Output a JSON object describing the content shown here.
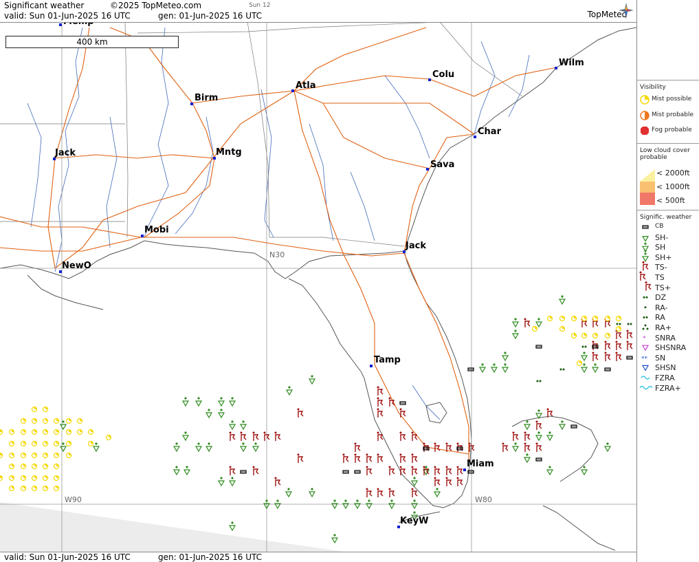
{
  "header": {
    "product": "Significant weather",
    "copyright": "©2025 TopMeteo.com",
    "day_code": "Sun 12",
    "valid": "valid:  Sun  01-Jun-2025  16 UTC",
    "gen": "gen: 01-Jun-2025 16 UTC",
    "brand": "TopMeteo"
  },
  "footer": {
    "valid": "valid:  Sun  01-Jun-2025  16 UTC",
    "gen": "gen: 01-Jun-2025 16 UTC"
  },
  "map": {
    "scale_label": "400 km",
    "grid_labels": [
      "N30",
      "W90",
      "W80"
    ],
    "cities": [
      "Memp",
      "Wilm",
      "Colu",
      "Atla",
      "Birm",
      "Char",
      "Jack",
      "Mntg",
      "Sava",
      "Mobi",
      "Jack",
      "NewO",
      "Tamp",
      "Miam",
      "KeyW"
    ]
  },
  "legend": {
    "visibility_title": "Visibility",
    "visibility": [
      "Mist possible",
      "Mist probable",
      "Fog probable"
    ],
    "lowcloud_title": "Low cloud cover probable",
    "lowcloud": [
      "< 2000ft",
      "< 1000ft",
      "<   500ft"
    ],
    "sigwx_title": "Signific. weather",
    "sigwx": [
      "CB",
      "SH-",
      "SH",
      "SH+",
      "TS-",
      "TS",
      "TS+",
      "DZ",
      "RA-",
      "RA",
      "RA+",
      "SNRA",
      "SHSNRA",
      "SN",
      "SHSN",
      "FZRA",
      "FZRA+"
    ],
    "colors": {
      "mist": "#f5d800",
      "orange": "#f07820",
      "fog": "#e03030",
      "shower": "#2e8b1e",
      "thunder": "#a01010",
      "snow": "#2050d0",
      "freezing": "#20c0e0",
      "snowrain": "#c040d0"
    }
  }
}
